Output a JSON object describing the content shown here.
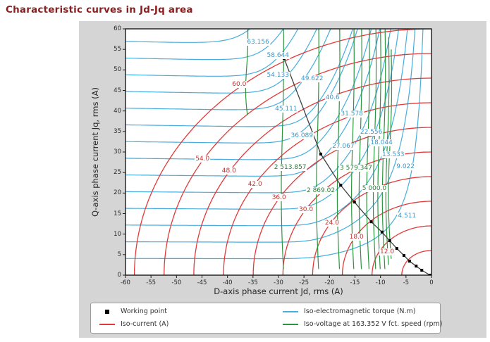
{
  "header": {
    "title": "Characteristic curves in Jd-Jq area"
  },
  "axes": {
    "x_label": "D-axis phase current Jd, rms (A)",
    "y_label": "Q-axis phase current Jq, rms (A)"
  },
  "legend": {
    "working_point": "Working point",
    "iso_current": "Iso-current (A)",
    "iso_torque": "Iso-electromagnetic torque (N.m)",
    "iso_voltage": "Iso-voltage at 163.352 V fct. speed (rpm)"
  },
  "chart_data": {
    "type": "contour",
    "title": "Characteristic curves in Jd-Jq area",
    "xlabel": "D-axis phase current Jd, rms (A)",
    "ylabel": "Q-axis phase current Jq, rms (A)",
    "xlim": [
      -60,
      0
    ],
    "ylim": [
      0,
      60
    ],
    "x_ticks": [
      -60,
      -55,
      -50,
      -45,
      -40,
      -35,
      -30,
      -25,
      -20,
      -15,
      -10,
      -5,
      0
    ],
    "y_ticks": [
      0,
      5,
      10,
      15,
      20,
      25,
      30,
      35,
      40,
      45,
      50,
      55,
      60
    ],
    "grid": false,
    "colors": {
      "iso_torque": "#45aede",
      "iso_current": "#e23a3a",
      "iso_voltage": "#2d9440",
      "working_line": "#3f3f3f",
      "working_marker": "#000000",
      "torque_label": "#3a97c8",
      "current_label": "#c23232",
      "voltage_label": "#2b7d38"
    },
    "iso_torque": {
      "unit": "N.m",
      "levels": [
        4.511,
        9.022,
        13.533,
        18.044,
        22.556,
        27.067,
        31.578,
        36.089,
        40.6,
        45.111,
        49.622,
        54.133,
        58.644,
        63.156
      ],
      "labels": [
        {
          "text": "63.156",
          "jd": -34.0,
          "jq": 56.7
        },
        {
          "text": "58.644",
          "jd": -30.1,
          "jq": 53.5
        },
        {
          "text": "54.133",
          "jd": -30.1,
          "jq": 48.7
        },
        {
          "text": "49.622",
          "jd": -23.4,
          "jq": 47.8
        },
        {
          "text": "45.111",
          "jd": -28.5,
          "jq": 40.5
        },
        {
          "text": "40.6",
          "jd": -19.4,
          "jq": 43.2
        },
        {
          "text": "36.089",
          "jd": -25.4,
          "jq": 33.9
        },
        {
          "text": "31.578",
          "jd": -15.6,
          "jq": 39.3
        },
        {
          "text": "27.067",
          "jd": -17.3,
          "jq": 31.4
        },
        {
          "text": "22.556",
          "jd": -11.8,
          "jq": 34.8
        },
        {
          "text": "18.044",
          "jd": -9.8,
          "jq": 32.2
        },
        {
          "text": "13.533",
          "jd": -7.5,
          "jq": 29.3
        },
        {
          "text": "9.022",
          "jd": -5.1,
          "jq": 26.4
        },
        {
          "text": "4.511",
          "jd": -4.8,
          "jq": 14.4
        }
      ]
    },
    "iso_current": {
      "unit": "A",
      "levels": [
        6,
        12,
        18,
        24,
        30,
        36,
        42,
        48,
        54,
        60
      ],
      "labels": [
        {
          "text": "60.0",
          "jd": -37.7,
          "jq": 46.5
        },
        {
          "text": "54.0",
          "jd": -44.9,
          "jq": 28.3
        },
        {
          "text": "48.0",
          "jd": -39.7,
          "jq": 25.4
        },
        {
          "text": "42.0",
          "jd": -34.6,
          "jq": 22.1
        },
        {
          "text": "36.0",
          "jd": -29.9,
          "jq": 18.9
        },
        {
          "text": "30.0",
          "jd": -24.6,
          "jq": 15.9
        },
        {
          "text": "24.0",
          "jd": -19.5,
          "jq": 12.7
        },
        {
          "text": "18.0",
          "jd": -14.7,
          "jq": 9.3
        },
        {
          "text": "12.0",
          "jd": -8.7,
          "jq": 5.7
        }
      ]
    },
    "iso_voltage": {
      "unit": "rpm",
      "voltage": "163.352 V",
      "curves": [
        {
          "jd": -36.0,
          "qmin": 38,
          "qmax": 60
        },
        {
          "jd": -29.0,
          "qmin": 0.5,
          "qmax": 60
        },
        {
          "jd": -22.1,
          "qmin": 0.5,
          "qmax": 60
        },
        {
          "jd": -18.0,
          "qmin": 0.5,
          "qmax": 60
        },
        {
          "jd": -15.2,
          "qmin": 0.5,
          "qmax": 60
        },
        {
          "jd": -13.7,
          "qmin": 0.5,
          "qmax": 60
        },
        {
          "jd": -12.2,
          "qmin": 0.5,
          "qmax": 60
        },
        {
          "jd": -10.9,
          "qmin": 0.5,
          "qmax": 60
        },
        {
          "jd": -10.0,
          "qmin": 0.5,
          "qmax": 60
        },
        {
          "jd": -9.1,
          "qmin": 0.8,
          "qmax": 60
        },
        {
          "jd": -8.4,
          "qmin": 2.0,
          "qmax": 58
        },
        {
          "jd": -7.9,
          "qmin": 4.0,
          "qmax": 55
        }
      ],
      "labels": [
        {
          "text": "2 513.857",
          "jd": -27.7,
          "jq": 26.2
        },
        {
          "text": "2 869.02",
          "jd": -21.7,
          "jq": 20.6
        },
        {
          "text": "3 579.347",
          "jd": -14.8,
          "jq": 26.1
        },
        {
          "text": "5 000.0",
          "jd": -11.2,
          "jq": 21.1
        }
      ]
    },
    "working_points": [
      [
        -28.9,
        52.8
      ],
      [
        -21.7,
        29.5
      ],
      [
        -17.8,
        21.9
      ],
      [
        -15.1,
        17.8
      ],
      [
        -11.8,
        13.0
      ],
      [
        -9.7,
        10.5
      ],
      [
        -8.2,
        8.4
      ],
      [
        -6.8,
        6.5
      ],
      [
        -5.4,
        4.8
      ],
      [
        -4.3,
        3.4
      ],
      [
        -3.0,
        2.2
      ],
      [
        -1.9,
        1.2
      ],
      [
        -0.3,
        0.0
      ]
    ]
  }
}
